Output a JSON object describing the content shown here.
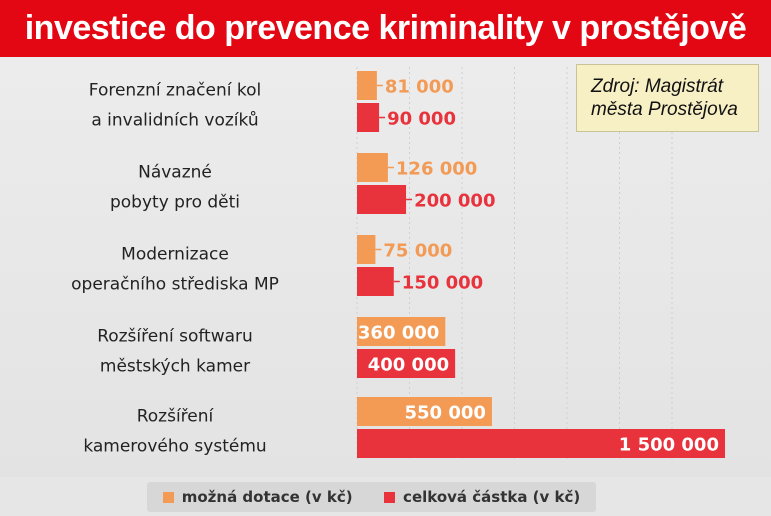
{
  "title": "investice do prevence kriminality v prostějově",
  "source": {
    "line1": "Zdroj: Magistrát",
    "line2": "města Prostějova"
  },
  "colors": {
    "header": "#e30613",
    "dotace": "#f39a55",
    "celkova": "#e8323c"
  },
  "chart_data": {
    "type": "bar",
    "orientation": "horizontal",
    "categories": [
      [
        "Forenzní značení kol",
        "a invalidních vozíků"
      ],
      [
        "Návazné",
        "pobyty pro děti"
      ],
      [
        "Modernizace",
        "operačního střediska MP"
      ],
      [
        "Rozšíření softwaru",
        "městských kamer"
      ],
      [
        "Rozšíření",
        "kamerového systému"
      ]
    ],
    "series": [
      {
        "name": "možná dotace (v kč)",
        "color": "#f39a55",
        "values": [
          81000,
          126000,
          75000,
          360000,
          550000
        ],
        "labels": [
          "81 000",
          "126 000",
          "75 000",
          "360 000",
          "550 000"
        ]
      },
      {
        "name": "celková částka (v kč)",
        "color": "#e8323c",
        "values": [
          90000,
          200000,
          150000,
          400000,
          1500000
        ],
        "labels": [
          "90 000",
          "200 000",
          "150 000",
          "400 000",
          "1 500 000"
        ]
      }
    ],
    "xlim": [
      0,
      1600000
    ],
    "grid": true,
    "legend": "bottom"
  }
}
